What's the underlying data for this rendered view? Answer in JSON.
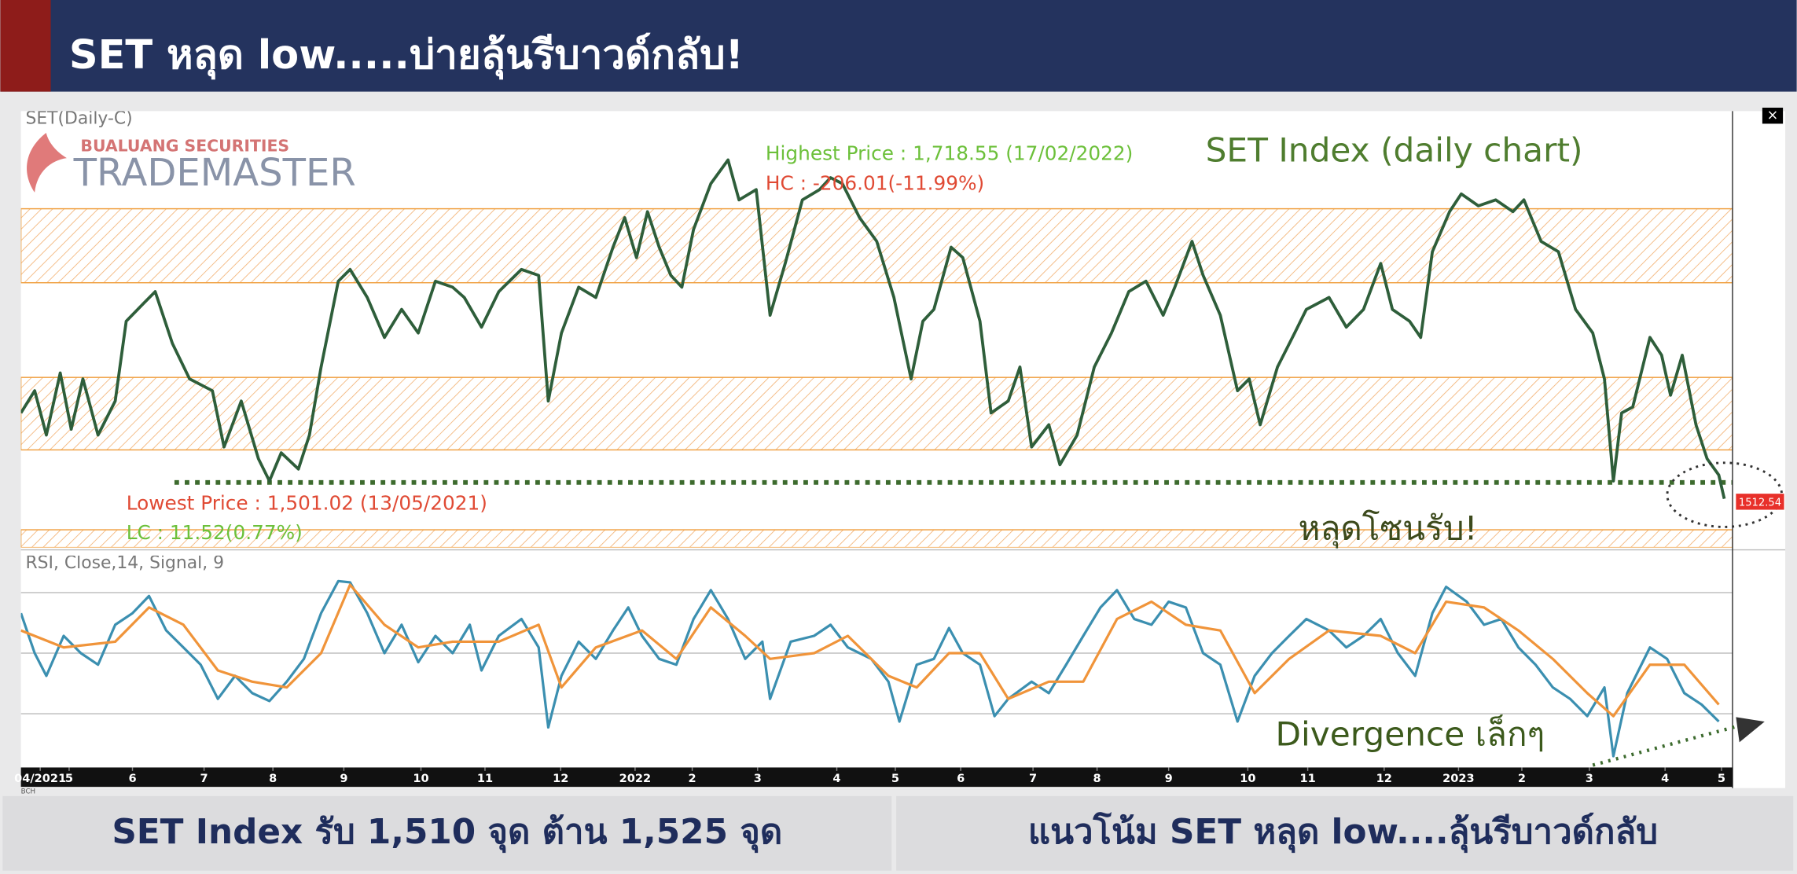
{
  "header": {
    "title": "SET หลุด low.....บ่ายลุ้นรีบาวด์กลับ!"
  },
  "logo": {
    "company": "BUALUANG SECURITIES",
    "product": "TRADEMASTER"
  },
  "chart_data": [
    {
      "type": "line",
      "label": "SET(Daily-C)",
      "title": "SET Index (daily chart)",
      "annotations": {
        "high": "Highest Price : 1,718.55 (17/02/2022)",
        "hc": "HC : -206.01(-11.99%)",
        "low": "Lowest Price : 1,501.02 (13/05/2021)",
        "lc": "LC : 11.52(0.77%)",
        "callout": "หลุดโซนรับ!",
        "last_price": "1512.54"
      },
      "xlim": [
        0.3,
        25.16
      ],
      "ylim": [
        1457,
        1752
      ],
      "zones": [
        [
          1636,
          1686
        ],
        [
          1523,
          1572
        ],
        [
          1457,
          1469
        ]
      ],
      "zone_color": "#f0a040",
      "support_level": 1501.02,
      "support_color": "#3d6b2e",
      "series": [
        {
          "color": "#2e5e3a",
          "x": [
            0.3,
            0.5,
            0.67,
            0.87,
            1.03,
            1.2,
            1.42,
            1.67,
            1.83,
            2.08,
            2.25,
            2.5,
            2.75,
            3.08,
            3.25,
            3.5,
            3.75,
            3.91,
            4.08,
            4.33,
            4.49,
            4.66,
            4.91,
            5.08,
            5.33,
            5.58,
            5.83,
            6.07,
            6.32,
            6.57,
            6.74,
            6.99,
            7.24,
            7.57,
            7.82,
            7.96,
            8.15,
            8.4,
            8.65,
            8.9,
            9.07,
            9.24,
            9.4,
            9.57,
            9.74,
            9.9,
            10.07,
            10.32,
            10.57,
            10.73,
            10.98,
            11.18,
            11.4,
            11.65,
            11.9,
            12.06,
            12.23,
            12.48,
            12.73,
            12.98,
            13.23,
            13.4,
            13.56,
            13.81,
            13.98,
            14.23,
            14.39,
            14.64,
            14.81,
            14.98,
            15.23,
            15.39,
            15.64,
            15.89,
            16.14,
            16.39,
            16.64,
            16.89,
            17.06,
            17.31,
            17.47,
            17.72,
            17.97,
            18.14,
            18.3,
            18.55,
            18.8,
            18.97,
            19.3,
            19.55,
            19.8,
            20.05,
            20.22,
            20.47,
            20.63,
            20.8,
            21.05,
            21.22,
            21.47,
            21.72,
            21.97,
            22.13,
            22.38,
            22.63,
            22.88,
            23.13,
            23.3,
            23.43,
            23.55,
            23.71,
            23.96,
            24.13,
            24.26,
            24.43,
            24.63,
            24.79,
            24.96,
            25.04
          ],
          "values": [
            1548,
            1563,
            1533,
            1575,
            1537,
            1571,
            1533,
            1556,
            1610,
            1622,
            1630,
            1595,
            1571,
            1563,
            1525,
            1556,
            1517,
            1502,
            1521,
            1510,
            1533,
            1579,
            1637,
            1645,
            1626,
            1599,
            1618,
            1602,
            1637,
            1633,
            1626,
            1606,
            1630,
            1645,
            1641,
            1556,
            1602,
            1633,
            1626,
            1660,
            1680,
            1653,
            1684,
            1660,
            1641,
            1633,
            1672,
            1703,
            1719,
            1692,
            1699,
            1614,
            1649,
            1692,
            1699,
            1707,
            1703,
            1680,
            1664,
            1626,
            1571,
            1610,
            1618,
            1660,
            1653,
            1610,
            1548,
            1556,
            1579,
            1525,
            1540,
            1513,
            1533,
            1579,
            1602,
            1630,
            1637,
            1614,
            1633,
            1664,
            1641,
            1614,
            1563,
            1571,
            1540,
            1579,
            1602,
            1618,
            1626,
            1606,
            1618,
            1649,
            1618,
            1610,
            1599,
            1657,
            1684,
            1696,
            1688,
            1692,
            1684,
            1692,
            1664,
            1657,
            1618,
            1602,
            1571,
            1502,
            1548,
            1552,
            1599,
            1587,
            1560,
            1587,
            1540,
            1517,
            1506,
            1490
          ]
        }
      ]
    },
    {
      "type": "line",
      "label": "RSI, Close,14, Signal, 9",
      "annotations": {
        "callout": "Divergence เล็กๆ",
        "source": "BCH"
      },
      "xlim": [
        0.3,
        25.16
      ],
      "ylim": [
        13,
        83
      ],
      "hlines": [
        30,
        50,
        70
      ],
      "xticks": [
        {
          "value": 0.58,
          "label": "04/2021"
        },
        {
          "value": 1,
          "label": "5"
        },
        {
          "value": 1.92,
          "label": "6"
        },
        {
          "value": 2.96,
          "label": "7"
        },
        {
          "value": 3.96,
          "label": "8"
        },
        {
          "value": 4.99,
          "label": "9"
        },
        {
          "value": 6.11,
          "label": "10"
        },
        {
          "value": 7.04,
          "label": "11"
        },
        {
          "value": 8.14,
          "label": "12"
        },
        {
          "value": 9.22,
          "label": "2022"
        },
        {
          "value": 10.05,
          "label": "2"
        },
        {
          "value": 11.0,
          "label": "3"
        },
        {
          "value": 12.15,
          "label": "4"
        },
        {
          "value": 13.0,
          "label": "5"
        },
        {
          "value": 13.95,
          "label": "6"
        },
        {
          "value": 15.0,
          "label": "7"
        },
        {
          "value": 15.93,
          "label": "8"
        },
        {
          "value": 16.97,
          "label": "9"
        },
        {
          "value": 18.12,
          "label": "10"
        },
        {
          "value": 18.99,
          "label": "11"
        },
        {
          "value": 20.1,
          "label": "12"
        },
        {
          "value": 21.18,
          "label": "2023"
        },
        {
          "value": 22.1,
          "label": "2"
        },
        {
          "value": 23.08,
          "label": "3"
        },
        {
          "value": 24.18,
          "label": "4"
        },
        {
          "value": 25.0,
          "label": "5"
        }
      ],
      "series": [
        {
          "color": "#3b8fb0",
          "x": [
            0.3,
            0.5,
            0.67,
            0.92,
            1.17,
            1.42,
            1.67,
            1.92,
            2.16,
            2.41,
            2.66,
            2.91,
            3.16,
            3.41,
            3.66,
            3.91,
            4.16,
            4.41,
            4.66,
            4.91,
            5.08,
            5.33,
            5.58,
            5.83,
            6.07,
            6.32,
            6.57,
            6.82,
            6.99,
            7.24,
            7.57,
            7.82,
            7.96,
            8.15,
            8.4,
            8.65,
            8.9,
            9.12,
            9.32,
            9.57,
            9.82,
            10.07,
            10.32,
            10.57,
            10.82,
            11.07,
            11.18,
            11.48,
            11.82,
            12.06,
            12.31,
            12.65,
            12.9,
            13.06,
            13.31,
            13.56,
            13.78,
            13.98,
            14.23,
            14.44,
            14.64,
            14.98,
            15.23,
            15.48,
            15.73,
            15.98,
            16.22,
            16.47,
            16.72,
            16.97,
            17.22,
            17.47,
            17.72,
            17.97,
            18.22,
            18.47,
            18.72,
            18.97,
            19.3,
            19.55,
            19.8,
            20.05,
            20.3,
            20.55,
            20.8,
            21.0,
            21.3,
            21.55,
            21.8,
            22.05,
            22.3,
            22.55,
            22.8,
            23.05,
            23.3,
            23.43,
            23.63,
            23.96,
            24.21,
            24.46,
            24.71,
            24.96
          ],
          "values": [
            63.2,
            50,
            42.5,
            55.7,
            50,
            46.2,
            59.4,
            63.2,
            68.9,
            57.5,
            51.9,
            46.2,
            34.9,
            42.5,
            36.8,
            34.2,
            40.6,
            48.1,
            63.2,
            73.8,
            73.4,
            63.2,
            50,
            59.4,
            47,
            55.7,
            50,
            59.4,
            44.3,
            55.7,
            61.3,
            51.9,
            25.5,
            42.5,
            53.8,
            48.1,
            57.5,
            65.1,
            55.7,
            48.1,
            46.2,
            61.3,
            70.8,
            61.3,
            48.1,
            53.8,
            34.9,
            53.8,
            55.7,
            59.4,
            51.9,
            48.1,
            40.6,
            27.4,
            46.2,
            48.1,
            58.3,
            50,
            46.2,
            29.2,
            34.9,
            40.6,
            36.8,
            46.2,
            55.7,
            65.1,
            70.8,
            61.3,
            59.4,
            67,
            65.1,
            50,
            46.2,
            27.4,
            42.5,
            50,
            55.7,
            61.3,
            57.5,
            51.9,
            55.7,
            61.3,
            50,
            42.5,
            63.2,
            71.9,
            67,
            59.4,
            61.3,
            51.9,
            46.2,
            38.7,
            34.9,
            29.2,
            38.7,
            16,
            36.8,
            51.9,
            48.1,
            36.8,
            33,
            27.4
          ]
        },
        {
          "color": "#f0943a",
          "x": [
            0.3,
            0.92,
            1.67,
            2.16,
            2.66,
            3.16,
            3.66,
            4.16,
            4.66,
            5.08,
            5.58,
            6.07,
            6.57,
            7.24,
            7.82,
            8.15,
            8.65,
            9.32,
            9.82,
            10.32,
            10.82,
            11.18,
            11.82,
            12.31,
            12.9,
            13.31,
            13.78,
            14.23,
            14.64,
            15.23,
            15.73,
            16.22,
            16.72,
            17.22,
            17.72,
            18.22,
            18.72,
            19.3,
            20.05,
            20.55,
            21.0,
            21.55,
            22.05,
            22.55,
            23.05,
            23.43,
            23.96,
            24.46,
            24.96
          ],
          "values": [
            57.5,
            51.9,
            53.8,
            65.1,
            59.4,
            44.3,
            40.6,
            38.7,
            50,
            72.6,
            59.4,
            51.9,
            53.8,
            53.8,
            59.4,
            38.7,
            51.9,
            57.5,
            48.1,
            65.1,
            55.7,
            48.1,
            50,
            55.7,
            42.5,
            38.7,
            50,
            50,
            34.9,
            40.6,
            40.6,
            61.3,
            67,
            59.4,
            57.5,
            36.8,
            48.1,
            57.5,
            55.7,
            50,
            67,
            65.1,
            57.5,
            48.1,
            36.8,
            29.2,
            46.2,
            46.2,
            33
          ]
        }
      ]
    }
  ],
  "footer": {
    "left": "SET Index รับ 1,510 จุด ต้าน 1,525 จุด",
    "right": "แนวโน้ม SET หลุด low....ลุ้นรีบาวด์กลับ"
  }
}
